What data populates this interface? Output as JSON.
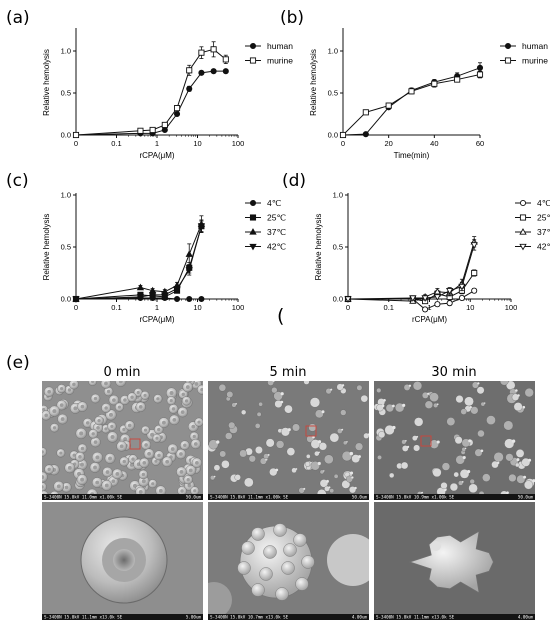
{
  "panel_labels": [
    "(a)",
    "(b)",
    "(c)",
    "(d)",
    "(e)"
  ],
  "stray_glyph": "(",
  "chart_data": [
    {
      "id": "a",
      "type": "line",
      "xscale": "log-with-zero",
      "xticks": [
        "0",
        "0.1",
        "1",
        "10",
        "100"
      ],
      "yticks": [
        "0.0",
        "0.5",
        "1.0"
      ],
      "ylim": [
        0,
        1.25
      ],
      "xlabel": "rCPA(μM)",
      "ylabel": "Relative hemolysis",
      "legend_position": "right",
      "series": [
        {
          "name": "human",
          "marker": "filled-circle",
          "points": [
            [
              0,
              0.0
            ],
            [
              0.39,
              0.02
            ],
            [
              0.78,
              0.02
            ],
            [
              1.56,
              0.06
            ],
            [
              3.125,
              0.25
            ],
            [
              6.25,
              0.55
            ],
            [
              12.5,
              0.74
            ],
            [
              25,
              0.76
            ],
            [
              50,
              0.76
            ]
          ],
          "errors": [
            0,
            0,
            0,
            0.01,
            0.02,
            0.03,
            0.02,
            0.02,
            0.02
          ]
        },
        {
          "name": "murine",
          "marker": "open-square",
          "points": [
            [
              0,
              0.0
            ],
            [
              0.39,
              0.05
            ],
            [
              0.78,
              0.06
            ],
            [
              1.56,
              0.12
            ],
            [
              3.125,
              0.32
            ],
            [
              6.25,
              0.77
            ],
            [
              12.5,
              0.98
            ],
            [
              25,
              1.02
            ],
            [
              50,
              0.9
            ]
          ],
          "errors": [
            0,
            0.01,
            0.01,
            0.01,
            0.03,
            0.06,
            0.07,
            0.09,
            0.05
          ]
        }
      ]
    },
    {
      "id": "b",
      "type": "line",
      "xticks": [
        "0",
        "20",
        "40",
        "60"
      ],
      "yticks": [
        "0.0",
        "0.5",
        "1.0"
      ],
      "xlim": [
        0,
        60
      ],
      "ylim": [
        0,
        1.25
      ],
      "xlabel": "Time(min)",
      "ylabel": "Relative hemolysis",
      "legend_position": "right",
      "series": [
        {
          "name": "human",
          "marker": "filled-circle",
          "points": [
            [
              0,
              0.0
            ],
            [
              10,
              0.01
            ],
            [
              20,
              0.33
            ],
            [
              30,
              0.53
            ],
            [
              40,
              0.63
            ],
            [
              50,
              0.7
            ],
            [
              60,
              0.8
            ]
          ],
          "errors": [
            0,
            0,
            0.02,
            0.03,
            0.03,
            0.04,
            0.06
          ]
        },
        {
          "name": "murine",
          "marker": "open-square",
          "points": [
            [
              0,
              0.0
            ],
            [
              10,
              0.27
            ],
            [
              20,
              0.35
            ],
            [
              30,
              0.52
            ],
            [
              40,
              0.61
            ],
            [
              50,
              0.66
            ],
            [
              60,
              0.72
            ]
          ],
          "errors": [
            0,
            0.02,
            0.03,
            0.03,
            0.04,
            0.03,
            0.04
          ]
        }
      ]
    },
    {
      "id": "c",
      "type": "line",
      "xscale": "log-with-zero",
      "xticks": [
        "0",
        "0.1",
        "1",
        "10",
        "100"
      ],
      "yticks": [
        "0.0",
        "0.5",
        "1.0"
      ],
      "ylim": [
        0,
        1.0
      ],
      "xlabel": "rCPA(μM)",
      "ylabel": "Relative hemolysis",
      "legend_position": "right",
      "series": [
        {
          "name": "4℃",
          "marker": "filled-circle",
          "points": [
            [
              0,
              0.0
            ],
            [
              0.39,
              0.01
            ],
            [
              0.78,
              0.01
            ],
            [
              1.56,
              0.01
            ],
            [
              3.125,
              0.0
            ],
            [
              6.25,
              0.0
            ],
            [
              12.5,
              0.0
            ]
          ],
          "errors": [
            0,
            0,
            0,
            0,
            0,
            0,
            0
          ]
        },
        {
          "name": "25℃",
          "marker": "filled-square",
          "points": [
            [
              0,
              0.0
            ],
            [
              0.39,
              0.04
            ],
            [
              0.78,
              0.03
            ],
            [
              1.56,
              0.02
            ],
            [
              3.125,
              0.08
            ],
            [
              6.25,
              0.3
            ],
            [
              12.5,
              0.7
            ]
          ],
          "errors": [
            0,
            0.01,
            0.01,
            0.01,
            0.02,
            0.05,
            0.06
          ]
        },
        {
          "name": "37℃",
          "marker": "filled-triangle-up",
          "points": [
            [
              0,
              0.0
            ],
            [
              0.39,
              0.11
            ],
            [
              0.78,
              0.08
            ],
            [
              1.56,
              0.07
            ],
            [
              3.125,
              0.13
            ],
            [
              6.25,
              0.43
            ],
            [
              12.5,
              0.72
            ]
          ],
          "errors": [
            0,
            0.02,
            0.02,
            0.02,
            0.03,
            0.1,
            0.08
          ]
        },
        {
          "name": "42℃",
          "marker": "filled-triangle-down",
          "points": [
            [
              0,
              0.0
            ],
            [
              0.39,
              0.02
            ],
            [
              0.78,
              0.04
            ],
            [
              1.56,
              0.04
            ],
            [
              3.125,
              0.1
            ],
            [
              6.25,
              0.28
            ],
            [
              12.5,
              0.7
            ]
          ],
          "errors": [
            0,
            0.01,
            0.01,
            0.01,
            0.02,
            0.05,
            0.05
          ]
        }
      ]
    },
    {
      "id": "d",
      "type": "line",
      "xscale": "log-with-zero",
      "xticks": [
        "0",
        "0.1",
        "1",
        "10",
        "100"
      ],
      "yticks": [
        "0.0",
        "0.5",
        "1.0"
      ],
      "ylim": [
        0,
        1.0
      ],
      "xlabel": "rCPA(μM)",
      "ylabel": "Relative hemolysis",
      "legend_position": "right",
      "series": [
        {
          "name": "4℃",
          "marker": "open-circle",
          "points": [
            [
              0,
              0.0
            ],
            [
              0.39,
              0.0
            ],
            [
              0.78,
              -0.1
            ],
            [
              1.56,
              -0.05
            ],
            [
              3.125,
              -0.04
            ],
            [
              6.25,
              0.01
            ],
            [
              12.5,
              0.08
            ]
          ],
          "errors": [
            0,
            0,
            0.02,
            0.02,
            0.02,
            0.02,
            0.02
          ]
        },
        {
          "name": "25℃",
          "marker": "open-square",
          "points": [
            [
              0,
              0.0
            ],
            [
              0.39,
              0.0
            ],
            [
              0.78,
              -0.02
            ],
            [
              1.56,
              0.05
            ],
            [
              3.125,
              0.02
            ],
            [
              6.25,
              0.08
            ],
            [
              12.5,
              0.25
            ]
          ],
          "errors": [
            0,
            0,
            0.02,
            0.03,
            0.03,
            0.03,
            0.03
          ]
        },
        {
          "name": "37℃",
          "marker": "open-triangle-up",
          "points": [
            [
              0,
              0.0
            ],
            [
              0.39,
              -0.02
            ],
            [
              0.78,
              0.02
            ],
            [
              1.56,
              0.07
            ],
            [
              3.125,
              0.06
            ],
            [
              6.25,
              0.15
            ],
            [
              12.5,
              0.55
            ]
          ],
          "errors": [
            0,
            0.02,
            0.02,
            0.03,
            0.03,
            0.04,
            0.05
          ]
        },
        {
          "name": "42℃",
          "marker": "open-triangle-down",
          "points": [
            [
              0,
              0.0
            ],
            [
              0.39,
              0.01
            ],
            [
              0.78,
              0.01
            ],
            [
              1.56,
              0.02
            ],
            [
              3.125,
              0.08
            ],
            [
              6.25,
              0.12
            ],
            [
              12.5,
              0.52
            ]
          ],
          "errors": [
            0,
            0.01,
            0.02,
            0.02,
            0.03,
            0.04,
            0.05
          ]
        }
      ]
    }
  ],
  "sem_panel": {
    "column_titles": [
      "0 min",
      "5 min",
      "30 min"
    ],
    "top_captions": [
      "S-3400N 15.0kV 11.0mm x1.00k SE",
      "S-3400N 15.0kV 11.1mm x1.00k SE",
      "S-3400N 15.0kV 10.9mm x1.00k SE"
    ],
    "top_scales": [
      "50.0um",
      "50.0um",
      "50.0um"
    ],
    "bottom_captions": [
      "S-3400N 15.0kV 11.1mm x13.0k SE",
      "S-3400N 15.0kV 10.7mm x13.0k SE",
      "S-3400N 15.0kV 11.1mm x13.0k SE"
    ],
    "bottom_scales": [
      "5.00um",
      "4.00um",
      "4.00um"
    ],
    "highlight_color": "#d0443a"
  }
}
